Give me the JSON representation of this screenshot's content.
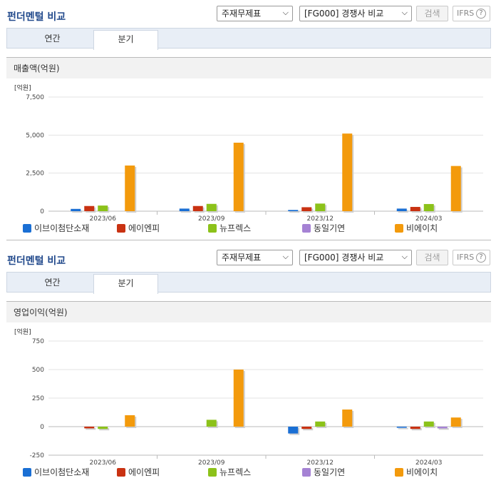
{
  "controls": {
    "select_a": "주재무제표",
    "select_b": "[FG000] 경쟁사 비교",
    "search_label": "검색",
    "ifrs_label": "IFRS",
    "help_symbol": "?"
  },
  "panels": [
    {
      "title": "펀더멘털 비교",
      "tabs": {
        "annual": "연간",
        "quarter": "분기"
      },
      "header": "매출액(억원)"
    },
    {
      "title": "펀더멘털 비교",
      "tabs": {
        "annual": "연간",
        "quarter": "분기"
      },
      "header": "영업이익(억원)"
    }
  ],
  "chart_data": [
    {
      "type": "bar",
      "unit_label": "[억원]",
      "categories": [
        "2023/06",
        "2023/09",
        "2023/12",
        "2024/03"
      ],
      "ylim": [
        0,
        7500
      ],
      "yticks": [
        0,
        2500,
        5000,
        7500
      ],
      "ytick_labels": [
        "0",
        "2,500",
        "5,000",
        "7,500"
      ],
      "series": [
        {
          "name": "이브이첨단소재",
          "color": "#1a6fd4",
          "values": [
            150,
            170,
            80,
            170
          ]
        },
        {
          "name": "에이엔피",
          "color": "#c93212",
          "values": [
            340,
            340,
            260,
            280
          ]
        },
        {
          "name": "뉴프렉스",
          "color": "#8cc21a",
          "values": [
            370,
            480,
            500,
            470
          ]
        },
        {
          "name": "동일기연",
          "color": "#a582d4",
          "values": [
            null,
            null,
            null,
            null
          ]
        },
        {
          "name": "비에이치",
          "color": "#f39a0c",
          "values": [
            3000,
            4500,
            5100,
            2970
          ]
        }
      ]
    },
    {
      "type": "bar",
      "unit_label": "[억원]",
      "categories": [
        "2023/06",
        "2023/09",
        "2023/12",
        "2024/03"
      ],
      "ylim": [
        -250,
        750
      ],
      "yticks": [
        -250,
        0,
        250,
        500,
        750
      ],
      "ytick_labels": [
        "-250",
        "0",
        "250",
        "500",
        "750"
      ],
      "series": [
        {
          "name": "이브이첨단소재",
          "color": "#1a6fd4",
          "values": [
            null,
            null,
            -60,
            -10
          ]
        },
        {
          "name": "에이엔피",
          "color": "#c93212",
          "values": [
            -15,
            null,
            -20,
            -20
          ]
        },
        {
          "name": "뉴프렉스",
          "color": "#8cc21a",
          "values": [
            -20,
            60,
            45,
            45
          ]
        },
        {
          "name": "동일기연",
          "color": "#a582d4",
          "values": [
            null,
            null,
            null,
            -15
          ]
        },
        {
          "name": "비에이치",
          "color": "#f39a0c",
          "values": [
            100,
            500,
            150,
            80
          ]
        }
      ]
    }
  ]
}
